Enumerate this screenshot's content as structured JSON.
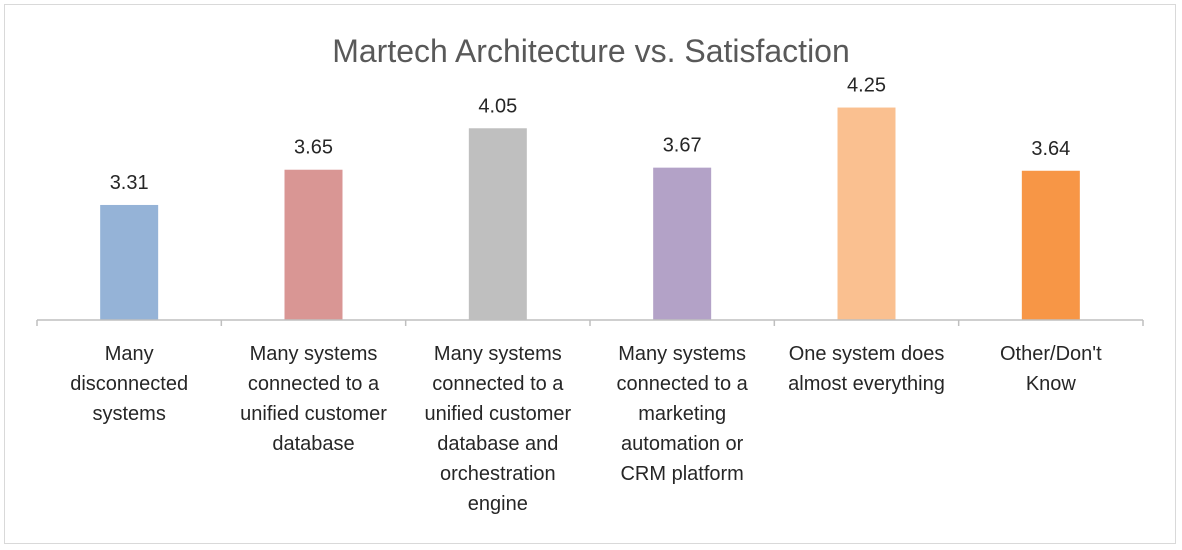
{
  "chart_data": {
    "type": "bar",
    "title": "Martech Architecture vs. Satisfaction",
    "xlabel": "",
    "ylabel": "",
    "ylim": [
      2.2,
      4.4
    ],
    "grid": false,
    "legend": "none",
    "categories": [
      [
        "Many",
        "disconnected",
        "systems"
      ],
      [
        "Many systems",
        "connected to a",
        "unified customer",
        "database"
      ],
      [
        "Many systems",
        "connected to a",
        "unified customer",
        "database and",
        "orchestration",
        "engine"
      ],
      [
        "Many systems",
        "connected to a",
        "marketing",
        "automation or",
        "CRM platform"
      ],
      [
        "One system does",
        "almost everything"
      ],
      [
        "Other/Don't",
        "Know"
      ]
    ],
    "values": [
      3.31,
      3.65,
      4.05,
      3.67,
      4.25,
      3.64
    ],
    "value_labels": [
      "3.31",
      "3.65",
      "4.05",
      "3.67",
      "4.25",
      "3.64"
    ],
    "colors": [
      "#95b3d7",
      "#d99694",
      "#bfbfbf",
      "#b3a2c7",
      "#fac090",
      "#f79646"
    ],
    "axis_color": "#bfbfbf"
  }
}
